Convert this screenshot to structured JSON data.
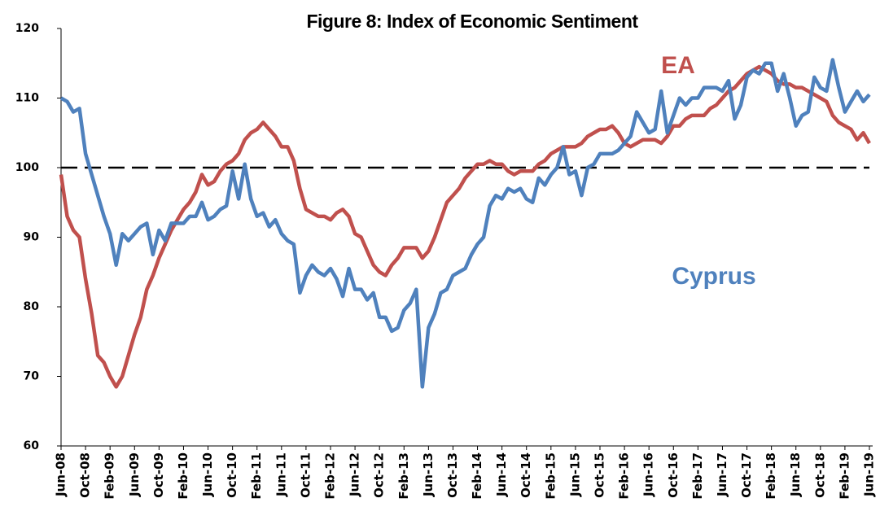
{
  "chart_data": {
    "type": "line",
    "title": "Figure 8: Index of Economic Sentiment",
    "categories": [
      "Jun-08",
      null,
      null,
      null,
      "Oct-08",
      null,
      null,
      null,
      "Feb-09",
      null,
      null,
      null,
      "Jun-09",
      null,
      null,
      null,
      "Oct-09",
      null,
      null,
      null,
      "Feb-10",
      null,
      null,
      null,
      "Jun-10",
      null,
      null,
      null,
      "Oct-10",
      null,
      null,
      null,
      "Feb-11",
      null,
      null,
      null,
      "Jun-11",
      null,
      null,
      null,
      "Oct-11",
      null,
      null,
      null,
      "Feb-12",
      null,
      null,
      null,
      "Jun-12",
      null,
      null,
      null,
      "Oct-12",
      null,
      null,
      null,
      "Feb-13",
      null,
      null,
      null,
      "Jun-13",
      null,
      null,
      null,
      "Oct-13",
      null,
      null,
      null,
      "Feb-14",
      null,
      null,
      null,
      "Jun-14",
      null,
      null,
      null,
      "Oct-14",
      null,
      null,
      null,
      "Feb-15",
      null,
      null,
      null,
      "Jun-15",
      null,
      null,
      null,
      "Oct-15",
      null,
      null,
      null,
      "Feb-16",
      null,
      null,
      null,
      "Jun-16",
      null,
      null,
      null,
      "Oct-16",
      null,
      null,
      null,
      "Feb-17",
      null,
      null,
      null,
      "Jun-17",
      null,
      null,
      null,
      "Oct-17",
      null,
      null,
      null,
      "Feb-18",
      null,
      null,
      null,
      "Jun-18",
      null,
      null,
      null,
      "Oct-18",
      null,
      null,
      null,
      "Feb-19",
      null,
      null,
      null,
      "Jun-19"
    ],
    "series": [
      {
        "name": "EA",
        "color": "#c0504d",
        "values": [
          99,
          93,
          91,
          90,
          84,
          79,
          73,
          72,
          70,
          68.5,
          70,
          73,
          76,
          78.5,
          82.5,
          84.5,
          87,
          89,
          91,
          92.5,
          94,
          95,
          96.5,
          99,
          97.5,
          98,
          99.5,
          100.5,
          101,
          102,
          104,
          105,
          105.5,
          106.5,
          105.5,
          104.5,
          103,
          103,
          101,
          97,
          94,
          93.5,
          93,
          93,
          92.5,
          93.5,
          94,
          93,
          90.5,
          90,
          88,
          86,
          85,
          84.5,
          86,
          87,
          88.5,
          88.5,
          88.5,
          87,
          88,
          90,
          92.5,
          95,
          96,
          97,
          98.5,
          99.5,
          100.5,
          100.5,
          101,
          100.5,
          100.5,
          99.5,
          99,
          99.5,
          99.5,
          99.5,
          100.5,
          101,
          102,
          102.5,
          103,
          103,
          103,
          103.5,
          104.5,
          105,
          105.5,
          105.5,
          106,
          105,
          103.5,
          103,
          103.5,
          104,
          104,
          104,
          103.5,
          104.5,
          106,
          106,
          107,
          107.5,
          107.5,
          107.5,
          108.5,
          109,
          110,
          111,
          111.5,
          112.5,
          113.5,
          114,
          114.5,
          114,
          113.5,
          112.5,
          112,
          112,
          111.5,
          111.5,
          111,
          110.5,
          110,
          109.5,
          107.5,
          106.5,
          106,
          105.5,
          104,
          105,
          103.5
        ]
      },
      {
        "name": "Cyprus",
        "color": "#4f81bd",
        "values": [
          110,
          109.5,
          108,
          108.5,
          102,
          99,
          96,
          93,
          90.5,
          86,
          90.5,
          89.5,
          90.5,
          91.5,
          92,
          87.5,
          91,
          89.5,
          92,
          92,
          92,
          93,
          93,
          95,
          92.5,
          93,
          94,
          94.5,
          99.5,
          95.5,
          100.5,
          95.5,
          93,
          93.5,
          91.5,
          92.5,
          90.5,
          89.5,
          89,
          82,
          84.5,
          86,
          85,
          84.5,
          85.5,
          84,
          81.5,
          85.5,
          82.5,
          82.5,
          81,
          82,
          78.5,
          78.5,
          76.5,
          77,
          79.5,
          80.5,
          82.5,
          68.5,
          77,
          79,
          82,
          82.5,
          84.5,
          85,
          85.5,
          87.5,
          89,
          90,
          94.5,
          96,
          95.5,
          97,
          96.5,
          97,
          95.5,
          95,
          98.5,
          97.5,
          99,
          100,
          103,
          99,
          99.5,
          96,
          100,
          100.5,
          102,
          102,
          102,
          102.5,
          103.5,
          104.5,
          108,
          106.5,
          105,
          105.5,
          111,
          105,
          107.5,
          110,
          109,
          110,
          110,
          111.5,
          111.5,
          111.5,
          111,
          112.5,
          107,
          109,
          113,
          114,
          113.5,
          115,
          115,
          111,
          113.5,
          110,
          106,
          107.5,
          108,
          113,
          111.5,
          111,
          115.5,
          111.5,
          108,
          109.5,
          111,
          109.5,
          110.5
        ]
      }
    ],
    "ylim": [
      60,
      120
    ],
    "yticks": [
      60,
      70,
      80,
      90,
      100,
      110,
      120
    ],
    "reference_line": 100
  }
}
